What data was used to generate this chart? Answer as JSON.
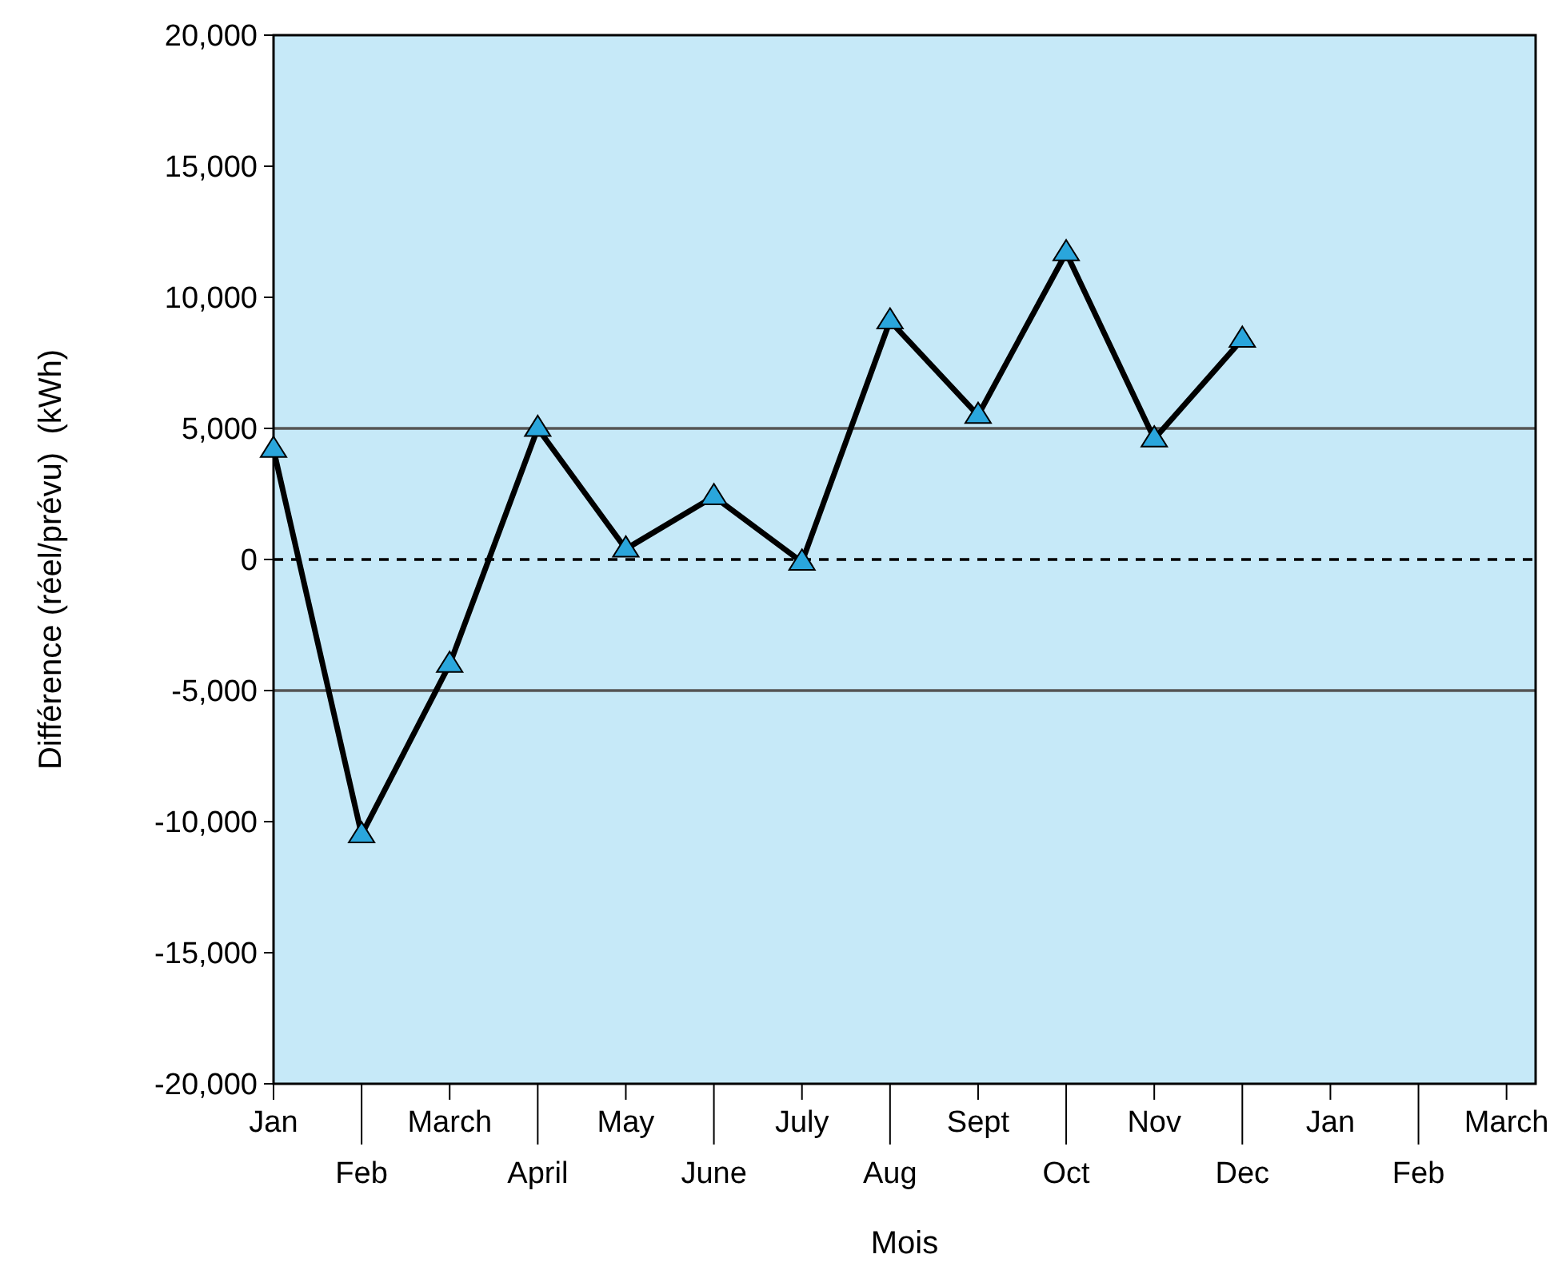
{
  "chart_data": {
    "type": "line",
    "xlabel": "Mois",
    "ylabel": "Différence (réel/prévu)  (kWh)",
    "categories": [
      "Jan",
      "Feb",
      "March",
      "April",
      "May",
      "June",
      "July",
      "Aug",
      "Sept",
      "Oct",
      "Nov",
      "Dec",
      "Jan",
      "Feb",
      "March"
    ],
    "series": [
      {
        "color": "#000000",
        "colors": [
          "#2aa6dc",
          "#2aa6dc",
          "#2aa6dc",
          "#2aa6dc",
          "#2aa6dc",
          "#2aa6dc",
          "#2aa6dc",
          "#2aa6dc",
          "#2aa6dc",
          "#2aa6dc",
          "#2aa6dc",
          "#2aa6dc",
          null,
          null,
          null
        ],
        "values": [
          4200,
          -10500,
          -4000,
          5000,
          400,
          2400,
          -100,
          9100,
          5500,
          11700,
          4600,
          8400,
          null,
          null,
          null
        ]
      }
    ],
    "ylim": [
      -20000,
      20000
    ],
    "yticks": [
      {
        "value": -20000,
        "label": "-20,000"
      },
      {
        "value": -15000,
        "label": "-15,000"
      },
      {
        "value": -10000,
        "label": "-10,000"
      },
      {
        "value": -5000,
        "label": "-5,000"
      },
      {
        "value": 0,
        "label": "0"
      },
      {
        "value": 5000,
        "label": "5,000"
      },
      {
        "value": 10000,
        "label": "10,000"
      },
      {
        "value": 15000,
        "label": "15,000"
      },
      {
        "value": 20000,
        "label": "20,000"
      }
    ],
    "ref_lines": [
      {
        "axis": "y",
        "value": 5000,
        "color": "#555555",
        "line_style": "solid"
      },
      {
        "axis": "y",
        "value": 0,
        "color": "#000000",
        "line_style": "dashed"
      },
      {
        "axis": "y",
        "value": -5000,
        "color": "#555555",
        "line_style": "solid"
      }
    ],
    "marker": "triangle",
    "line_style": "solid",
    "grid": false
  }
}
